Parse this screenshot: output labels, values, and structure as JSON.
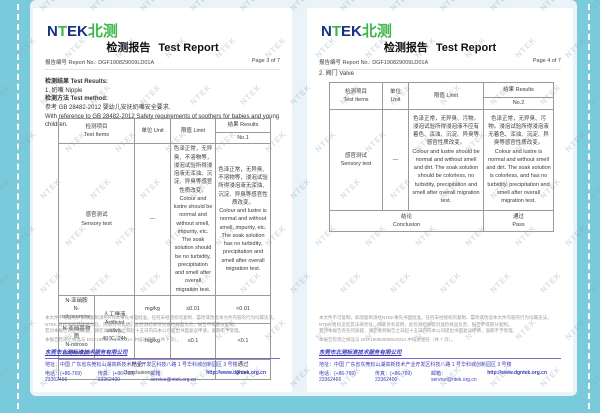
{
  "watermark_text": "NTEK",
  "brand": {
    "logo_n": "N",
    "logo_t": "T",
    "logo_ek": "EK",
    "logo_cn": "北测",
    "blue": "#16337f",
    "green": "#3cb54a"
  },
  "title": {
    "cn": "检测报告",
    "en": "Test Report"
  },
  "report": {
    "label": "报告编号 Report No.:",
    "number": "DGF190829009LD01A"
  },
  "pages": {
    "left": {
      "page_label": "Page 3 of 7",
      "results_heading": "检测结果 Test Results:",
      "sample": "1. 奶嘴 Nipple",
      "method_label": "检测方法 Test method:",
      "method_cn": "参考 GB 28482-2012 婴幼儿安抚奶嘴安全要求.",
      "method_en": "With reference to GB 28482-2012 Safety requirements of soothers for babies and young children.",
      "table": {
        "header": {
          "items_cn": "检测项目",
          "items_en": "Test Items",
          "unit": "单位 Unit",
          "limit": "限值 Limit",
          "results": "结果 Results",
          "no": "No.1"
        },
        "sensory": {
          "name_cn": "感官测试",
          "name_en": "Sensory test",
          "unit": "—",
          "limit_cn": "色泽正常，无异臭、不溶物等，浸泡试验所得浸泡液无浑浊、沉淀、异臭等感官性质改变。",
          "limit_en": "Colour and lustre should be normal and without smell, impurity, etc. The soak solution should be no turbidity, precipitation and smell after overall migration test.",
          "result_cn": "色泽正常，无异臭、不溶物等，浸泡试验所得浸泡液无浑浊、沉淀、异臭等感官性质改变。",
          "result_en": "Colour and lustre is normal and without smell, impurity, etc. The soak solution has no turbidity, precipitation and smell after overall migration test."
        },
        "condition": {
          "cn": "人工唾液",
          "en": "Artificial saliva,",
          "detail": "40℃, 24h"
        },
        "rows": [
          {
            "name_cn": "N-亚硝胺",
            "name_en": "N-nitrosamine",
            "unit": "mg/kg",
            "limit": "≤0.01",
            "result": "<0.01"
          },
          {
            "name_cn": "N-亚硝基物质",
            "name_en": "N-nitroso substances",
            "unit": "mg/kg",
            "limit": "≤0.1",
            "result": "<0.1"
          }
        ],
        "conclusion": {
          "label_cn": "结论",
          "label_en": "Conclusion",
          "value_cn": "通过",
          "value_en": "Pass"
        }
      }
    },
    "right": {
      "page_label": "Page 4 of 7",
      "sample": "2. 阀门 Valve",
      "table": {
        "header": {
          "items_cn": "检测项目",
          "items_en": "Test Items",
          "unit": "单位 Unit",
          "limit": "限值 Limit",
          "results": "结果 Results",
          "no": "No.2"
        },
        "sensory": {
          "name_cn": "感官测试",
          "name_en": "Sensory test",
          "unit": "—",
          "limit_cn": "色泽正常，无异臭、污物。浸泡试验所得浸泡液不应有着色、浑浊、沉淀、异臭等感官性质改变。",
          "limit_en": "Colour and lustre should be normal and without smell and dirt. The soak solution should be colorless, no turbidity, precipitation and smell after overall migration test.",
          "result_cn": "色泽正常，无异臭、污物。浸泡试验所得浸泡液无着色、浑浊、沉淀、异臭等感官性质改变。",
          "result_en": "Colour and lustre is normal and without smell and dirt. The soak solution is colorless, and has no turbidity, precipitation and smell after overall migration test."
        },
        "conclusion": {
          "label_cn": "结论",
          "label_en": "Conclusion",
          "value_cn": "通过",
          "value_en": "Pass"
        }
      }
    }
  },
  "footer": {
    "disclaimer_line1": "本文件不可复制，如须复制须经NTEK事先书面批准。任何未经授权的复制、篡改或伪造本文件内容的行为均属违法，NTEK 有权追究其法律责任。除非另有说明，此检测结果仅对送检样品负责，报告不得部分复制。",
    "disclaimer_line2": "若对本报告有任何质疑，请在收到报告之日起十五日内向本公司提出书面复议申请，逾期不予受理。",
    "disclaimer_line3": "本报告检测之样品与 DGF190829009LD01A 中描述相符（共 7 页）。",
    "company": "东莞市北测标准技术服务有限公司",
    "address": "地址：中国 广东省东莞松山湖高新技术产业开发区科技八路 1 号华科城创新园区 3 号楼",
    "tel": "电话：(+86-769) 23362466",
    "fax": "传真：(+86-769) 23362400",
    "email": "邮箱：service@ntek.org.cn",
    "url": "http://www.dgntek.org.cn"
  }
}
